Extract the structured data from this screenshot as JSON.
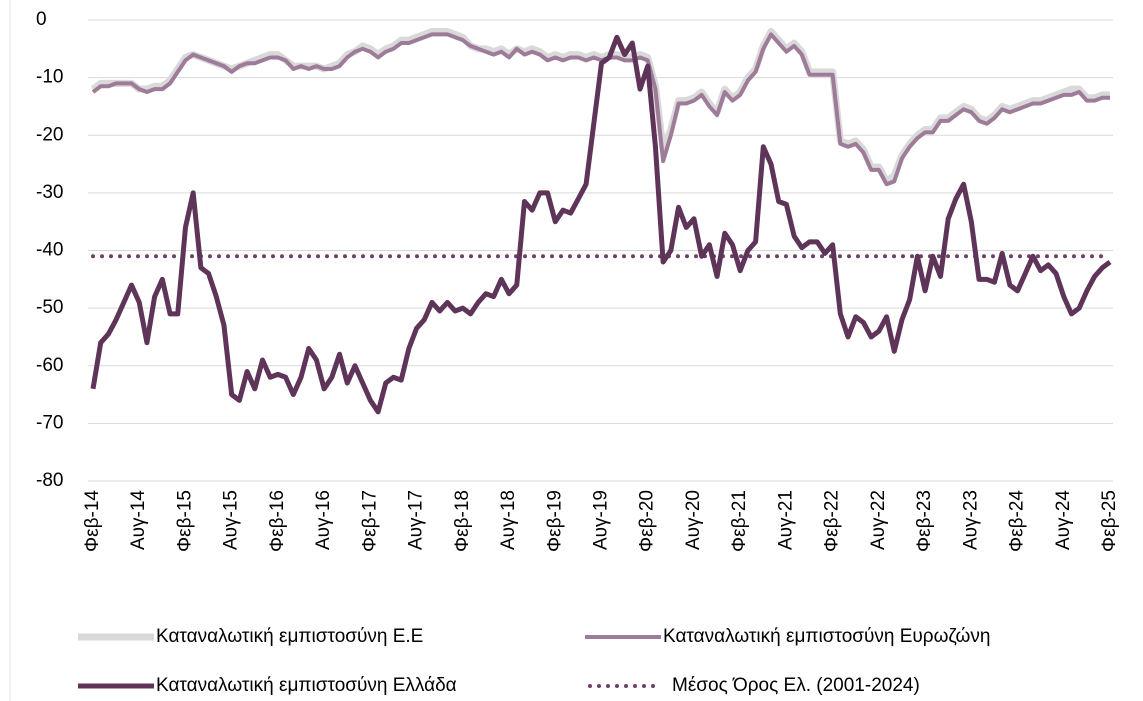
{
  "chart_data": {
    "type": "line",
    "categories": [
      "Φεβ-14",
      null,
      null,
      null,
      null,
      null,
      "Αυγ-14",
      null,
      null,
      null,
      null,
      null,
      "Φεβ-15",
      null,
      null,
      null,
      null,
      null,
      "Αυγ-15",
      null,
      null,
      null,
      null,
      null,
      "Φεβ-16",
      null,
      null,
      null,
      null,
      null,
      "Αυγ-16",
      null,
      null,
      null,
      null,
      null,
      "Φεβ-17",
      null,
      null,
      null,
      null,
      null,
      "Αυγ-17",
      null,
      null,
      null,
      null,
      null,
      "Φεβ-18",
      null,
      null,
      null,
      null,
      null,
      "Αυγ-18",
      null,
      null,
      null,
      null,
      null,
      "Φεβ-19",
      null,
      null,
      null,
      null,
      null,
      "Αυγ-19",
      null,
      null,
      null,
      null,
      null,
      "Φεβ-20",
      null,
      null,
      null,
      null,
      null,
      "Αυγ-20",
      null,
      null,
      null,
      null,
      null,
      "Φεβ-21",
      null,
      null,
      null,
      null,
      null,
      "Αυγ-21",
      null,
      null,
      null,
      null,
      null,
      "Φεβ-22",
      null,
      null,
      null,
      null,
      null,
      "Αυγ-22",
      null,
      null,
      null,
      null,
      null,
      "Φεβ-23",
      null,
      null,
      null,
      null,
      null,
      "Αυγ-23",
      null,
      null,
      null,
      null,
      null,
      "Φεβ-24",
      null,
      null,
      null,
      null,
      null,
      "Αυγ-24",
      null,
      null,
      null,
      null,
      null,
      "Φεβ-25"
    ],
    "series": [
      {
        "name": "Καταναλωτική εμπιστοσύνη Ε.Ε",
        "color": "#d9d9d9",
        "values": [
          -12,
          -11,
          -11,
          -11,
          -11,
          -11,
          -12,
          -12,
          -11.5,
          -11.5,
          -10.5,
          -8.5,
          -6.5,
          -6,
          -6.5,
          -7,
          -7.5,
          -8,
          -8.5,
          -8,
          -7.5,
          -7,
          -6.5,
          -6,
          -6,
          -7,
          -8,
          -8,
          -8,
          -8,
          -8.5,
          -8,
          -7.5,
          -6,
          -5.5,
          -4.5,
          -5,
          -6,
          -5,
          -4.5,
          -3.5,
          -3.5,
          -3,
          -2.5,
          -2,
          -2,
          -2,
          -2.5,
          -3,
          -4.5,
          -5,
          -5,
          -5.5,
          -5,
          -6,
          -5,
          -5.5,
          -5,
          -5.5,
          -6.5,
          -6,
          -6.5,
          -6,
          -6,
          -6.5,
          -6,
          -6.5,
          -6,
          -6,
          -6.5,
          -6.5,
          -6,
          -6.5,
          -11.5,
          -22.5,
          -19,
          -14,
          -14,
          -13.5,
          -12.5,
          -14.5,
          -16,
          -12,
          -13.5,
          -12.5,
          -10,
          -8.5,
          -4.5,
          -2,
          -3.5,
          -5,
          -4,
          -5.5,
          -9,
          -9,
          -9,
          -9,
          -21,
          -21.5,
          -21,
          -22.5,
          -25.5,
          -25.5,
          -28,
          -27,
          -23.5,
          -21.5,
          -20,
          -19,
          -19,
          -17,
          -17,
          -16,
          -15,
          -15.5,
          -17,
          -17.5,
          -16.5,
          -15,
          -15.5,
          -15,
          -14.5,
          -14,
          -14,
          -13.5,
          -13,
          -12.5,
          -12,
          -12,
          -13.5,
          -13.5,
          -13,
          -13
        ]
      },
      {
        "name": "Καταναλωτική εμπιστοσύνη Ευρωζώνη",
        "color": "#9e7b98",
        "values": [
          -12.5,
          -11.5,
          -11.5,
          -11,
          -11,
          -11,
          -12,
          -12.5,
          -12,
          -12,
          -11,
          -9,
          -7,
          -6,
          -6.5,
          -7,
          -7.5,
          -8,
          -9,
          -8,
          -7.5,
          -7.5,
          -7,
          -6.5,
          -6.5,
          -7,
          -8.5,
          -8,
          -8.5,
          -8,
          -8.5,
          -8.5,
          -8,
          -6.5,
          -5.5,
          -5,
          -5.5,
          -6.5,
          -5.5,
          -5,
          -4,
          -4,
          -3.5,
          -3,
          -2.5,
          -2.5,
          -2.5,
          -3,
          -3.5,
          -4.5,
          -5,
          -5.5,
          -6,
          -5.5,
          -6.5,
          -5,
          -6,
          -5.5,
          -6,
          -7,
          -6.5,
          -7,
          -6.5,
          -6.5,
          -7,
          -6.5,
          -7,
          -6.5,
          -6.5,
          -7,
          -7,
          -6.5,
          -7,
          -12,
          -24.5,
          -20,
          -14.5,
          -14.5,
          -14,
          -13,
          -15,
          -16.5,
          -12.5,
          -14,
          -13,
          -10.5,
          -9,
          -5,
          -2.5,
          -4,
          -5.5,
          -4.5,
          -6,
          -9.5,
          -9.5,
          -9.5,
          -9.5,
          -21.5,
          -22,
          -21.5,
          -23,
          -26,
          -26,
          -28.5,
          -28,
          -24,
          -22,
          -20.5,
          -19.5,
          -19.5,
          -17.5,
          -17.5,
          -16.5,
          -15.5,
          -16,
          -17.5,
          -18,
          -17,
          -15.5,
          -16,
          -15.5,
          -15,
          -14.5,
          -14.5,
          -14,
          -13.5,
          -13,
          -13,
          -12.5,
          -14,
          -14,
          -13.5,
          -13.5
        ]
      },
      {
        "name": "Καταναλωτική εμπιστοσύνη Ελλάδα",
        "color": "#5e3459",
        "values": [
          -64,
          -56,
          -54.5,
          -52,
          -49,
          -46,
          -49,
          -56,
          -48,
          -45,
          -51,
          -51,
          -36,
          -30,
          -43,
          -44,
          -48,
          -53,
          -65,
          -66,
          -61,
          -64,
          -59,
          -62,
          -61.5,
          -62,
          -65,
          -62,
          -57,
          -59,
          -64,
          -62,
          -58,
          -63,
          -60,
          -63,
          -66,
          -68,
          -63,
          -62,
          -62.5,
          -57,
          -53.5,
          -52,
          -49,
          -50.5,
          -49,
          -50.5,
          -50,
          -51,
          -49,
          -47.5,
          -48,
          -45,
          -47.5,
          -46,
          -31.5,
          -33,
          -30,
          -30,
          -35,
          -33,
          -33.5,
          -31,
          -28.5,
          -18,
          -7.5,
          -6.5,
          -3,
          -6,
          -4,
          -12,
          -8,
          -22,
          -42,
          -40,
          -32.5,
          -36,
          -34.5,
          -41,
          -39,
          -44.5,
          -37,
          -39,
          -43.5,
          -40,
          -38.5,
          -22,
          -25,
          -31.5,
          -32,
          -37.5,
          -39.5,
          -38.5,
          -38.5,
          -40.5,
          -39,
          -51,
          -55,
          -51.5,
          -52.5,
          -55,
          -54,
          -51.5,
          -57.5,
          -52,
          -48.5,
          -41,
          -47,
          -41,
          -44.5,
          -34.5,
          -31,
          -28.5,
          -35,
          -45,
          -45,
          -45.5,
          -40.5,
          -46,
          -47,
          -44,
          -41,
          -43.5,
          -42.5,
          -44,
          -48,
          -51,
          -50,
          -47,
          -44.5,
          -43,
          -42
        ]
      }
    ],
    "reference_line": {
      "name": "Μέσος Όρος Ελ. (2001-2024)",
      "value": -41,
      "color": "#6e4068",
      "style": "dotted"
    },
    "ylim": [
      -80,
      0
    ],
    "yticks": [
      0,
      -10,
      -20,
      -30,
      -40,
      -50,
      -60,
      -70,
      -80
    ],
    "grid": true
  }
}
